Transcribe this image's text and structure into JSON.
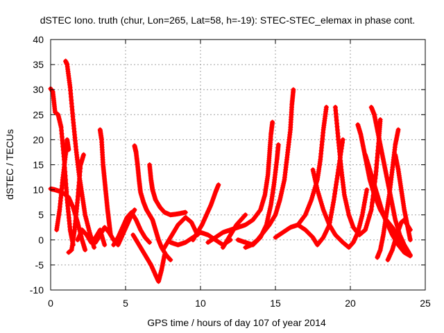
{
  "chart_data": {
    "type": "scatter",
    "title": "dSTEC Iono. truth (chur, Lon=265, Lat=58, h=-19): STEC-STEC_elemax in phase cont.",
    "xlabel": "GPS time / hours of day 107 of year 2014",
    "ylabel": "dSTEC  / TECUs",
    "xlim": [
      0,
      25
    ],
    "ylim": [
      -10,
      40
    ],
    "xticks": [
      0,
      5,
      10,
      15,
      20,
      25
    ],
    "yticks": [
      -10,
      -5,
      0,
      5,
      10,
      15,
      20,
      25,
      30,
      35,
      40
    ],
    "xtick_labels": [
      "0",
      "5",
      "10",
      "15",
      "20",
      "25"
    ],
    "ytick_labels": [
      "-10",
      "-5",
      "0",
      "5",
      "10",
      "15",
      "20",
      "25",
      "30",
      "35",
      "40"
    ],
    "grid": true,
    "marker": "+",
    "color": "#ff0000",
    "series": [
      {
        "x": [
          0.0,
          0.15,
          0.3,
          0.5,
          0.7,
          0.9,
          1.1,
          1.3,
          1.5
        ],
        "y": [
          30.2,
          29.5,
          25.5,
          25.0,
          22.5,
          16.0,
          8.0,
          2.0,
          -1.0
        ]
      },
      {
        "x": [
          0.0,
          0.3,
          0.6,
          0.9,
          1.2,
          1.5,
          1.8,
          2.1,
          2.3
        ],
        "y": [
          10.2,
          10.0,
          9.7,
          9.2,
          8.5,
          6.5,
          3.5,
          0.0,
          -2.0
        ]
      },
      {
        "x": [
          0.4,
          0.6,
          0.8,
          1.0,
          1.1,
          1.2
        ],
        "y": [
          2.0,
          6.0,
          12.0,
          17.0,
          20.0,
          18.0
        ]
      },
      {
        "x": [
          1.0,
          1.1,
          1.3,
          1.5,
          1.7,
          1.9,
          2.1,
          2.3,
          2.6,
          2.9
        ],
        "y": [
          35.7,
          35.0,
          30.5,
          24.0,
          18.0,
          13.0,
          9.0,
          5.0,
          1.5,
          -1.5
        ]
      },
      {
        "x": [
          1.2,
          1.4,
          1.6,
          1.8,
          2.0,
          2.2
        ],
        "y": [
          -2.5,
          -2.0,
          2.0,
          8.0,
          15.0,
          17.0
        ]
      },
      {
        "x": [
          3.3,
          3.4,
          3.5,
          3.6,
          3.7,
          3.8,
          3.9,
          4.0
        ],
        "y": [
          22.0,
          20.0,
          15.0,
          12.0,
          9.0,
          6.0,
          3.5,
          1.0
        ]
      },
      {
        "x": [
          5.6,
          5.7,
          5.8,
          5.9,
          6.0,
          6.2,
          6.4,
          6.6,
          6.8,
          7.0,
          7.2,
          7.4,
          7.7,
          8.0
        ],
        "y": [
          18.8,
          17.5,
          15.0,
          12.0,
          9.5,
          7.5,
          6.0,
          5.0,
          4.0,
          2.0,
          0.0,
          -1.5,
          -3.0,
          -4.0
        ]
      },
      {
        "x": [
          6.6,
          6.7,
          6.8,
          7.0,
          7.3,
          7.6,
          8.0,
          8.5,
          9.0
        ],
        "y": [
          15.0,
          12.0,
          10.0,
          8.0,
          6.5,
          5.5,
          5.0,
          5.2,
          5.5
        ]
      },
      {
        "x": [
          5.5,
          5.8,
          6.1,
          6.4,
          6.7,
          7.0,
          7.2,
          7.4,
          7.6
        ],
        "y": [
          1.0,
          -0.5,
          -2.0,
          -3.5,
          -5.0,
          -7.0,
          -8.3,
          -6.0,
          -3.0
        ]
      },
      {
        "x": [
          7.5,
          8.0,
          8.5,
          9.0,
          9.4,
          9.8
        ],
        "y": [
          -2.0,
          0.5,
          3.0,
          4.5,
          3.5,
          1.0
        ]
      },
      {
        "x": [
          9.5,
          9.8,
          10.1,
          10.4,
          10.7,
          11.0,
          11.2
        ],
        "y": [
          0.0,
          1.5,
          3.0,
          5.0,
          7.0,
          9.5,
          11.0
        ]
      },
      {
        "x": [
          11.5,
          11.8,
          12.1,
          12.4,
          12.7,
          13.0
        ],
        "y": [
          -1.5,
          0.0,
          1.5,
          3.0,
          4.0,
          5.0
        ]
      },
      {
        "x": [
          10.5,
          11.0,
          11.5,
          12.0,
          12.5,
          13.0,
          13.5,
          14.0,
          14.3,
          14.5,
          14.6,
          14.7,
          14.8
        ],
        "y": [
          -0.5,
          0.5,
          1.5,
          2.0,
          2.5,
          3.0,
          4.0,
          6.0,
          9.0,
          13.0,
          17.0,
          21.0,
          23.5
        ]
      },
      {
        "x": [
          12.5,
          13.0,
          13.5,
          14.0,
          14.4,
          14.7,
          14.9,
          15.1,
          15.2
        ],
        "y": [
          0.0,
          -0.5,
          -1.0,
          0.5,
          3.0,
          7.0,
          11.0,
          16.0,
          19.0
        ]
      },
      {
        "x": [
          13.0,
          13.4,
          13.8,
          14.2,
          14.6,
          15.0,
          15.3,
          15.6,
          15.8,
          16.0,
          16.1,
          16.2
        ],
        "y": [
          -1.5,
          -1.0,
          0.0,
          1.5,
          3.0,
          5.0,
          8.0,
          12.0,
          17.0,
          22.0,
          27.0,
          30.0
        ]
      },
      {
        "x": [
          15.0,
          15.5,
          16.0,
          16.5,
          17.0,
          17.4,
          17.8,
          18.0,
          18.2,
          18.4
        ],
        "y": [
          0.5,
          1.5,
          2.5,
          3.0,
          5.0,
          8.0,
          12.0,
          16.0,
          22.0,
          26.5
        ]
      },
      {
        "x": [
          16.5,
          17.0,
          17.5,
          17.8,
          18.2,
          18.6,
          18.9,
          19.2,
          19.5
        ],
        "y": [
          3.0,
          2.0,
          0.5,
          -1.0,
          0.5,
          3.0,
          8.0,
          14.0,
          20.0
        ]
      },
      {
        "x": [
          17.5,
          17.8,
          18.2,
          18.6,
          19.0,
          19.5,
          19.9,
          20.2,
          20.5,
          20.8,
          21.1
        ],
        "y": [
          14.0,
          10.0,
          6.0,
          3.0,
          1.0,
          -0.5,
          -1.5,
          -0.5,
          1.5,
          5.0,
          10.0
        ]
      },
      {
        "x": [
          19.0,
          19.2,
          19.4,
          19.6,
          19.9,
          20.2,
          20.6,
          21.0,
          21.4,
          21.7,
          21.9,
          22.0
        ],
        "y": [
          26.5,
          20.0,
          14.0,
          9.0,
          5.0,
          2.5,
          1.0,
          2.0,
          6.0,
          13.0,
          20.0,
          24.0
        ]
      },
      {
        "x": [
          20.5,
          20.7,
          20.9,
          21.1,
          21.3,
          21.6,
          22.0,
          22.4,
          22.8,
          23.2,
          23.6,
          24.0
        ],
        "y": [
          23.0,
          21.0,
          18.0,
          15.0,
          12.0,
          9.0,
          6.0,
          4.0,
          2.5,
          0.5,
          -1.5,
          -3.0
        ]
      },
      {
        "x": [
          21.4,
          21.6,
          21.8,
          22.0,
          22.2,
          22.4,
          22.6,
          22.8,
          23.0,
          23.3,
          23.6,
          23.9
        ],
        "y": [
          26.5,
          25.0,
          22.0,
          19.0,
          16.0,
          13.0,
          10.0,
          7.0,
          4.0,
          1.0,
          -1.0,
          -2.5
        ]
      },
      {
        "x": [
          21.0,
          21.3,
          21.6,
          21.9,
          22.2,
          22.5,
          22.8,
          23.2,
          23.6,
          24.0
        ],
        "y": [
          17.0,
          14.0,
          11.0,
          8.0,
          5.0,
          3.0,
          1.0,
          -1.0,
          -2.5,
          -3.2
        ]
      },
      {
        "x": [
          21.8,
          22.0,
          22.2,
          22.4,
          22.6,
          22.8,
          23.0,
          23.2
        ],
        "y": [
          -3.5,
          -2.0,
          1.0,
          5.0,
          9.0,
          14.0,
          19.0,
          22.0
        ]
      },
      {
        "x": [
          23.0,
          23.2,
          23.4,
          23.6,
          23.8,
          24.0
        ],
        "y": [
          17.0,
          14.0,
          10.0,
          6.0,
          3.0,
          0.0
        ]
      },
      {
        "x": [
          22.5,
          22.8,
          23.1,
          23.4,
          23.6,
          23.8,
          24.0
        ],
        "y": [
          -4.0,
          -2.0,
          1.0,
          3.5,
          4.0,
          3.0,
          2.0
        ]
      },
      {
        "x": [
          3.0,
          3.3,
          3.6,
          3.9,
          4.2,
          4.5,
          4.8,
          5.1,
          5.4,
          5.6
        ],
        "y": [
          -0.5,
          1.0,
          2.5,
          1.5,
          0.0,
          -1.0,
          1.0,
          3.0,
          5.0,
          6.0
        ]
      },
      {
        "x": [
          4.2,
          4.5,
          4.8,
          5.1,
          5.4,
          5.7,
          6.0,
          6.3,
          6.6
        ],
        "y": [
          -1.0,
          0.5,
          2.5,
          4.5,
          5.5,
          4.0,
          2.0,
          0.5,
          -0.5
        ]
      },
      {
        "x": [
          8.0,
          8.5,
          9.0,
          9.5,
          10.0,
          10.5,
          11.0,
          11.5,
          12.0
        ],
        "y": [
          -0.5,
          -1.0,
          -0.5,
          0.5,
          1.5,
          1.0,
          0.0,
          -1.0,
          0.0
        ]
      },
      {
        "x": [
          1.8,
          2.1,
          2.4,
          2.7,
          3.0,
          3.3,
          3.6
        ],
        "y": [
          0.0,
          2.0,
          1.0,
          -0.5,
          0.5,
          2.0,
          -1.0
        ]
      }
    ]
  }
}
